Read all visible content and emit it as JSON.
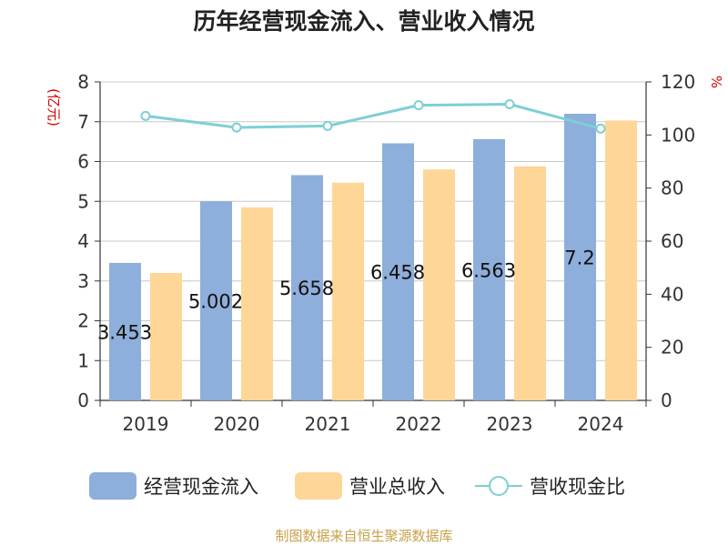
{
  "title": "历年经营现金流入、营业收入情况",
  "source": "制图数据来自恒生聚源数据库",
  "chart_data": {
    "type": "bar",
    "categories": [
      "2019",
      "2020",
      "2021",
      "2022",
      "2023",
      "2024"
    ],
    "series": [
      {
        "name": "经营现金流入",
        "axis": "left",
        "kind": "bar",
        "color": "#8eaedb",
        "values": [
          3.453,
          5.002,
          5.658,
          6.458,
          6.563,
          7.2
        ],
        "labels": [
          "3.453",
          "5.002",
          "5.658",
          "6.458",
          "6.563",
          "7.2"
        ]
      },
      {
        "name": "营业总收入",
        "axis": "left",
        "kind": "bar",
        "color": "#fdd698",
        "values": [
          3.2,
          4.85,
          5.47,
          5.8,
          5.88,
          7.03
        ]
      },
      {
        "name": "营收现金比",
        "axis": "right",
        "kind": "line",
        "color": "#7ecfd4",
        "values": [
          107.2,
          102.8,
          103.4,
          111.2,
          111.6,
          102.4
        ]
      }
    ],
    "left_axis": {
      "unit": "(亿元)",
      "ylim": [
        0,
        8
      ],
      "ticks": [
        0,
        1,
        2,
        3,
        4,
        5,
        6,
        7,
        8
      ]
    },
    "right_axis": {
      "unit": "%",
      "ylim": [
        0,
        120
      ],
      "ticks": [
        0,
        20,
        40,
        60,
        80,
        100,
        120
      ]
    },
    "grid": true,
    "legend": "bottom"
  }
}
